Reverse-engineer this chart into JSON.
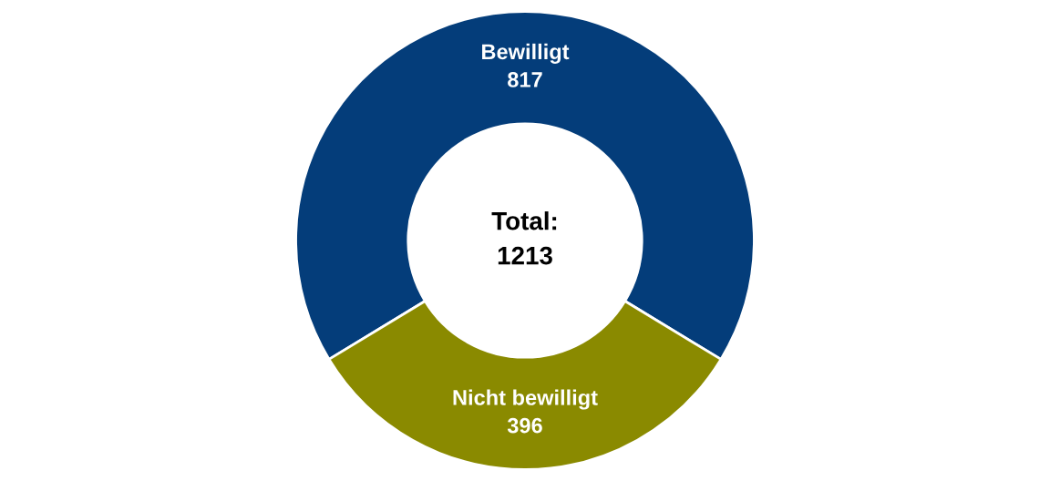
{
  "chart_data": {
    "type": "donut",
    "categories": [
      "Bewilligt",
      "Nicht bewilligt"
    ],
    "values": [
      817,
      396
    ],
    "colors": [
      "#043d7a",
      "#8a8a00"
    ],
    "data_labels": true,
    "annotations": [
      "Total:\n1213"
    ],
    "legend": false
  }
}
